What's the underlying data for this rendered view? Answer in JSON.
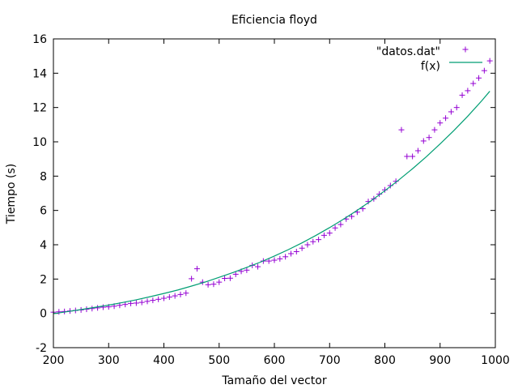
{
  "chart_data": {
    "type": "scatter",
    "title": "Eficiencia floyd",
    "xlabel": "Tamaño del vector",
    "ylabel": "Tiempo (s)",
    "xlim": [
      200,
      1000
    ],
    "ylim": [
      -2,
      16
    ],
    "xticks": [
      200,
      300,
      400,
      500,
      600,
      700,
      800,
      900,
      1000
    ],
    "yticks": [
      -2,
      0,
      2,
      4,
      6,
      8,
      10,
      12,
      14,
      16
    ],
    "grid": false,
    "legend_position": "top-right",
    "series": [
      {
        "name": "\"datos.dat\"",
        "kind": "points",
        "marker": "plus",
        "color": "#9400d3",
        "x": [
          200,
          210,
          220,
          230,
          240,
          250,
          260,
          270,
          280,
          290,
          300,
          310,
          320,
          330,
          340,
          350,
          360,
          370,
          380,
          390,
          400,
          410,
          420,
          430,
          440,
          450,
          460,
          470,
          480,
          490,
          500,
          510,
          520,
          530,
          540,
          550,
          560,
          570,
          580,
          590,
          600,
          610,
          620,
          630,
          640,
          650,
          660,
          670,
          680,
          690,
          700,
          710,
          720,
          730,
          740,
          750,
          760,
          770,
          780,
          790,
          800,
          810,
          820,
          830,
          840,
          850,
          860,
          870,
          880,
          890,
          900,
          910,
          920,
          930,
          940,
          950,
          960,
          970,
          980,
          990
        ],
        "y": [
          0.07,
          0.09,
          0.11,
          0.14,
          0.17,
          0.2,
          0.24,
          0.28,
          0.32,
          0.36,
          0.38,
          0.42,
          0.47,
          0.52,
          0.58,
          0.6,
          0.64,
          0.7,
          0.76,
          0.82,
          0.88,
          0.95,
          1.02,
          1.1,
          1.18,
          2.02,
          2.6,
          1.82,
          1.67,
          1.7,
          1.82,
          2.04,
          2.05,
          2.28,
          2.45,
          2.52,
          2.8,
          2.72,
          3.05,
          3.05,
          3.1,
          3.18,
          3.3,
          3.48,
          3.6,
          3.8,
          4.0,
          4.18,
          4.3,
          4.55,
          4.68,
          4.98,
          5.18,
          5.5,
          5.65,
          5.9,
          6.1,
          6.52,
          6.68,
          6.95,
          7.2,
          7.45,
          7.7,
          10.7,
          9.15,
          9.15,
          9.48,
          10.05,
          10.25,
          10.7,
          11.1,
          11.38,
          11.75,
          12.0,
          12.72,
          12.98,
          13.4,
          13.72,
          14.15,
          14.72
        ]
      },
      {
        "name": "f(x)",
        "kind": "line",
        "color": "#009e73",
        "x": [
          200,
          225,
          250,
          275,
          300,
          325,
          350,
          375,
          400,
          425,
          450,
          475,
          500,
          525,
          550,
          575,
          600,
          625,
          650,
          675,
          700,
          725,
          750,
          775,
          800,
          825,
          850,
          875,
          900,
          925,
          950,
          975,
          990
        ],
        "y": [
          -0.02,
          0.1,
          0.22,
          0.35,
          0.48,
          0.63,
          0.79,
          0.97,
          1.16,
          1.36,
          1.59,
          1.83,
          2.1,
          2.38,
          2.68,
          2.99,
          3.34,
          3.71,
          4.11,
          4.54,
          5.0,
          5.49,
          6.01,
          6.56,
          7.15,
          7.77,
          8.43,
          9.13,
          9.88,
          10.66,
          11.49,
          12.38,
          12.95
        ]
      }
    ]
  }
}
